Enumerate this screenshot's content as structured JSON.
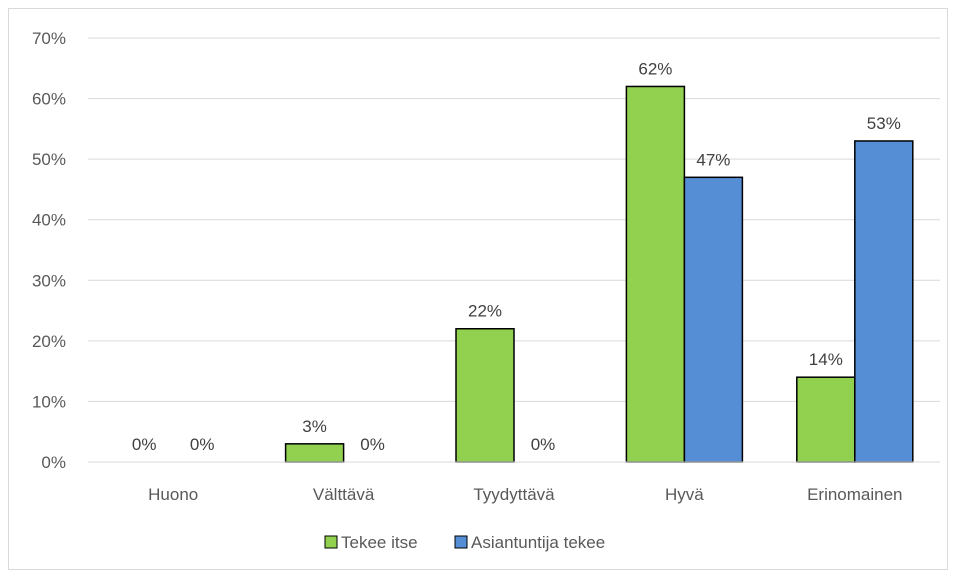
{
  "chart_data": {
    "type": "bar",
    "categories": [
      "Huono",
      "Välttävä",
      "Tyydyttävä",
      "Hyvä",
      "Erinomainen"
    ],
    "series": [
      {
        "name": "Tekee itse",
        "values": [
          0,
          3,
          22,
          62,
          14
        ],
        "labels": [
          "0%",
          "3%",
          "22%",
          "62%",
          "14%"
        ],
        "color": "#92d050"
      },
      {
        "name": "Asiantuntija tekee",
        "values": [
          0,
          0,
          0,
          47,
          53
        ],
        "labels": [
          "0%",
          "0%",
          "0%",
          "47%",
          "53%"
        ],
        "color": "#558ed5"
      }
    ],
    "y_ticks": [
      "0%",
      "10%",
      "20%",
      "30%",
      "40%",
      "50%",
      "60%",
      "70%"
    ],
    "ylim": [
      0,
      70
    ],
    "grid": true,
    "legend_position": "bottom"
  }
}
